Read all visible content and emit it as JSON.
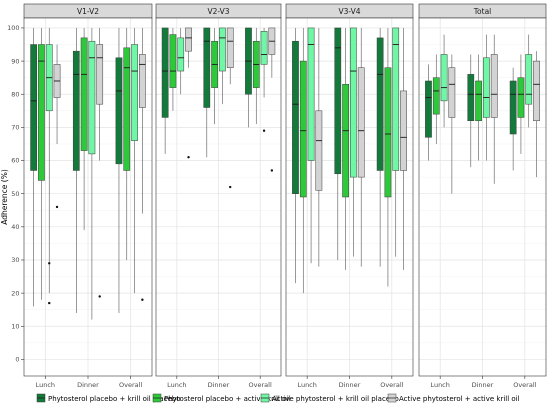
{
  "chart_data": {
    "type": "box",
    "ylabel": "Adherence (%)",
    "xlabel": "",
    "ylim": [
      -5,
      103
    ],
    "yticks": [
      0,
      10,
      20,
      30,
      40,
      50,
      60,
      70,
      80,
      90,
      100
    ],
    "grid": true,
    "legend_position": "bottom",
    "categories": [
      "Lunch",
      "Dinner",
      "Overall"
    ],
    "series": [
      {
        "name": "Phytosterol placebo + krill oil placebo",
        "color": "#137a3b"
      },
      {
        "name": "Phytosterol placebo + active krill oil",
        "color": "#2ec83b"
      },
      {
        "name": "Active phytosterol + krill oil placebo",
        "color": "#6ff7a5"
      },
      {
        "name": "Active phytosterol + active krill oil",
        "color": "#d3d3d3"
      }
    ],
    "panels": [
      {
        "title": "V1-V2",
        "groups": [
          {
            "category": "Lunch",
            "boxes": [
              {
                "series": 0,
                "min": 16,
                "q1": 57,
                "median": 78,
                "q3": 95,
                "max": 100,
                "outliers": []
              },
              {
                "series": 1,
                "min": 18,
                "q1": 54,
                "median": 90,
                "q3": 95,
                "max": 100,
                "outliers": []
              },
              {
                "series": 2,
                "min": 20,
                "q1": 75,
                "median": 85,
                "q3": 95,
                "max": 100,
                "outliers": [
                  29,
                  17
                ]
              },
              {
                "series": 3,
                "min": 65,
                "q1": 79,
                "median": 84,
                "q3": 89,
                "max": 95,
                "outliers": [
                  46
                ]
              }
            ]
          },
          {
            "category": "Dinner",
            "boxes": [
              {
                "series": 0,
                "min": 14,
                "q1": 57,
                "median": 86,
                "q3": 93,
                "max": 100,
                "outliers": []
              },
              {
                "series": 1,
                "min": 39,
                "q1": 63,
                "median": 86,
                "q3": 97,
                "max": 100,
                "outliers": []
              },
              {
                "series": 2,
                "min": 12,
                "q1": 62,
                "median": 91,
                "q3": 96,
                "max": 100,
                "outliers": []
              },
              {
                "series": 3,
                "min": 60,
                "q1": 77,
                "median": 91,
                "q3": 95,
                "max": 100,
                "outliers": [
                  19
                ]
              }
            ]
          },
          {
            "category": "Overall",
            "boxes": [
              {
                "series": 0,
                "min": 14,
                "q1": 59,
                "median": 81,
                "q3": 91,
                "max": 100,
                "outliers": []
              },
              {
                "series": 1,
                "min": 30,
                "q1": 57,
                "median": 88,
                "q3": 94,
                "max": 100,
                "outliers": []
              },
              {
                "series": 2,
                "min": 20,
                "q1": 66,
                "median": 87,
                "q3": 95,
                "max": 100,
                "outliers": []
              },
              {
                "series": 3,
                "min": 44,
                "q1": 76,
                "median": 89,
                "q3": 92,
                "max": 100,
                "outliers": [
                  18
                ]
              }
            ]
          }
        ]
      },
      {
        "title": "V2-V3",
        "groups": [
          {
            "category": "Lunch",
            "boxes": [
              {
                "series": 0,
                "min": 62,
                "q1": 73,
                "median": 87,
                "q3": 100,
                "max": 100,
                "outliers": []
              },
              {
                "series": 1,
                "min": 75,
                "q1": 82,
                "median": 87,
                "q3": 98,
                "max": 100,
                "outliers": []
              },
              {
                "series": 2,
                "min": 80,
                "q1": 87,
                "median": 91,
                "q3": 97,
                "max": 100,
                "outliers": []
              },
              {
                "series": 3,
                "min": 88,
                "q1": 93,
                "median": 97,
                "q3": 100,
                "max": 100,
                "outliers": [
                  61
                ]
              }
            ]
          },
          {
            "category": "Dinner",
            "boxes": [
              {
                "series": 0,
                "min": 61,
                "q1": 76,
                "median": 96,
                "q3": 100,
                "max": 100,
                "outliers": []
              },
              {
                "series": 1,
                "min": 71,
                "q1": 82,
                "median": 89,
                "q3": 96,
                "max": 100,
                "outliers": []
              },
              {
                "series": 2,
                "min": 77,
                "q1": 87,
                "median": 97,
                "q3": 100,
                "max": 100,
                "outliers": []
              },
              {
                "series": 3,
                "min": 83,
                "q1": 88,
                "median": 96,
                "q3": 100,
                "max": 100,
                "outliers": [
                  52
                ]
              }
            ]
          },
          {
            "category": "Overall",
            "boxes": [
              {
                "series": 0,
                "min": 70,
                "q1": 80,
                "median": 90,
                "q3": 100,
                "max": 100,
                "outliers": []
              },
              {
                "series": 1,
                "min": 71,
                "q1": 82,
                "median": 89,
                "q3": 96,
                "max": 100,
                "outliers": []
              },
              {
                "series": 2,
                "min": 79,
                "q1": 89,
                "median": 92,
                "q3": 99,
                "max": 100,
                "outliers": [
                  69
                ]
              },
              {
                "series": 3,
                "min": 85,
                "q1": 92,
                "median": 96,
                "q3": 100,
                "max": 100,
                "outliers": [
                  57
                ]
              }
            ]
          }
        ]
      },
      {
        "title": "V3-V4",
        "groups": [
          {
            "category": "Lunch",
            "boxes": [
              {
                "series": 0,
                "min": 23,
                "q1": 50,
                "median": 77,
                "q3": 96,
                "max": 100,
                "outliers": []
              },
              {
                "series": 1,
                "min": 20,
                "q1": 49,
                "median": 69,
                "q3": 90,
                "max": 100,
                "outliers": []
              },
              {
                "series": 2,
                "min": 29,
                "q1": 60,
                "median": 95,
                "q3": 100,
                "max": 100,
                "outliers": []
              },
              {
                "series": 3,
                "min": 28,
                "q1": 51,
                "median": 66,
                "q3": 75,
                "max": 100,
                "outliers": []
              }
            ]
          },
          {
            "category": "Dinner",
            "boxes": [
              {
                "series": 0,
                "min": 30,
                "q1": 56,
                "median": 94,
                "q3": 100,
                "max": 100,
                "outliers": []
              },
              {
                "series": 1,
                "min": 27,
                "q1": 49,
                "median": 69,
                "q3": 83,
                "max": 100,
                "outliers": []
              },
              {
                "series": 2,
                "min": 31,
                "q1": 55,
                "median": 87,
                "q3": 100,
                "max": 100,
                "outliers": []
              },
              {
                "series": 3,
                "min": 28,
                "q1": 55,
                "median": 69,
                "q3": 88,
                "max": 100,
                "outliers": []
              }
            ]
          },
          {
            "category": "Overall",
            "boxes": [
              {
                "series": 0,
                "min": 28,
                "q1": 57,
                "median": 86,
                "q3": 97,
                "max": 100,
                "outliers": []
              },
              {
                "series": 1,
                "min": 22,
                "q1": 49,
                "median": 68,
                "q3": 88,
                "max": 100,
                "outliers": []
              },
              {
                "series": 2,
                "min": 31,
                "q1": 57,
                "median": 95,
                "q3": 100,
                "max": 100,
                "outliers": []
              },
              {
                "series": 3,
                "min": 27,
                "q1": 57,
                "median": 67,
                "q3": 81,
                "max": 100,
                "outliers": []
              }
            ]
          }
        ]
      },
      {
        "title": "Total",
        "groups": [
          {
            "category": "Lunch",
            "boxes": [
              {
                "series": 0,
                "min": 60,
                "q1": 67,
                "median": 79,
                "q3": 84,
                "max": 89,
                "outliers": []
              },
              {
                "series": 1,
                "min": 65,
                "q1": 74,
                "median": 81,
                "q3": 85,
                "max": 92,
                "outliers": []
              },
              {
                "series": 2,
                "min": 70,
                "q1": 78,
                "median": 82,
                "q3": 92,
                "max": 98,
                "outliers": []
              },
              {
                "series": 3,
                "min": 50,
                "q1": 73,
                "median": 83,
                "q3": 88,
                "max": 92,
                "outliers": []
              }
            ]
          },
          {
            "category": "Dinner",
            "boxes": [
              {
                "series": 0,
                "min": 58,
                "q1": 72,
                "median": 80,
                "q3": 86,
                "max": 92,
                "outliers": []
              },
              {
                "series": 1,
                "min": 60,
                "q1": 72,
                "median": 80,
                "q3": 84,
                "max": 92,
                "outliers": []
              },
              {
                "series": 2,
                "min": 60,
                "q1": 73,
                "median": 79,
                "q3": 91,
                "max": 98,
                "outliers": []
              },
              {
                "series": 3,
                "min": 53,
                "q1": 73,
                "median": 80,
                "q3": 92,
                "max": 98,
                "outliers": []
              }
            ]
          },
          {
            "category": "Overall",
            "boxes": [
              {
                "series": 0,
                "min": 57,
                "q1": 68,
                "median": 80,
                "q3": 84,
                "max": 88,
                "outliers": []
              },
              {
                "series": 1,
                "min": 62,
                "q1": 73,
                "median": 80,
                "q3": 85,
                "max": 92,
                "outliers": []
              },
              {
                "series": 2,
                "min": 70,
                "q1": 77,
                "median": 80,
                "q3": 92,
                "max": 98,
                "outliers": []
              },
              {
                "series": 3,
                "min": 55,
                "q1": 72,
                "median": 83,
                "q3": 90,
                "max": 93,
                "outliers": []
              }
            ]
          }
        ]
      }
    ]
  }
}
